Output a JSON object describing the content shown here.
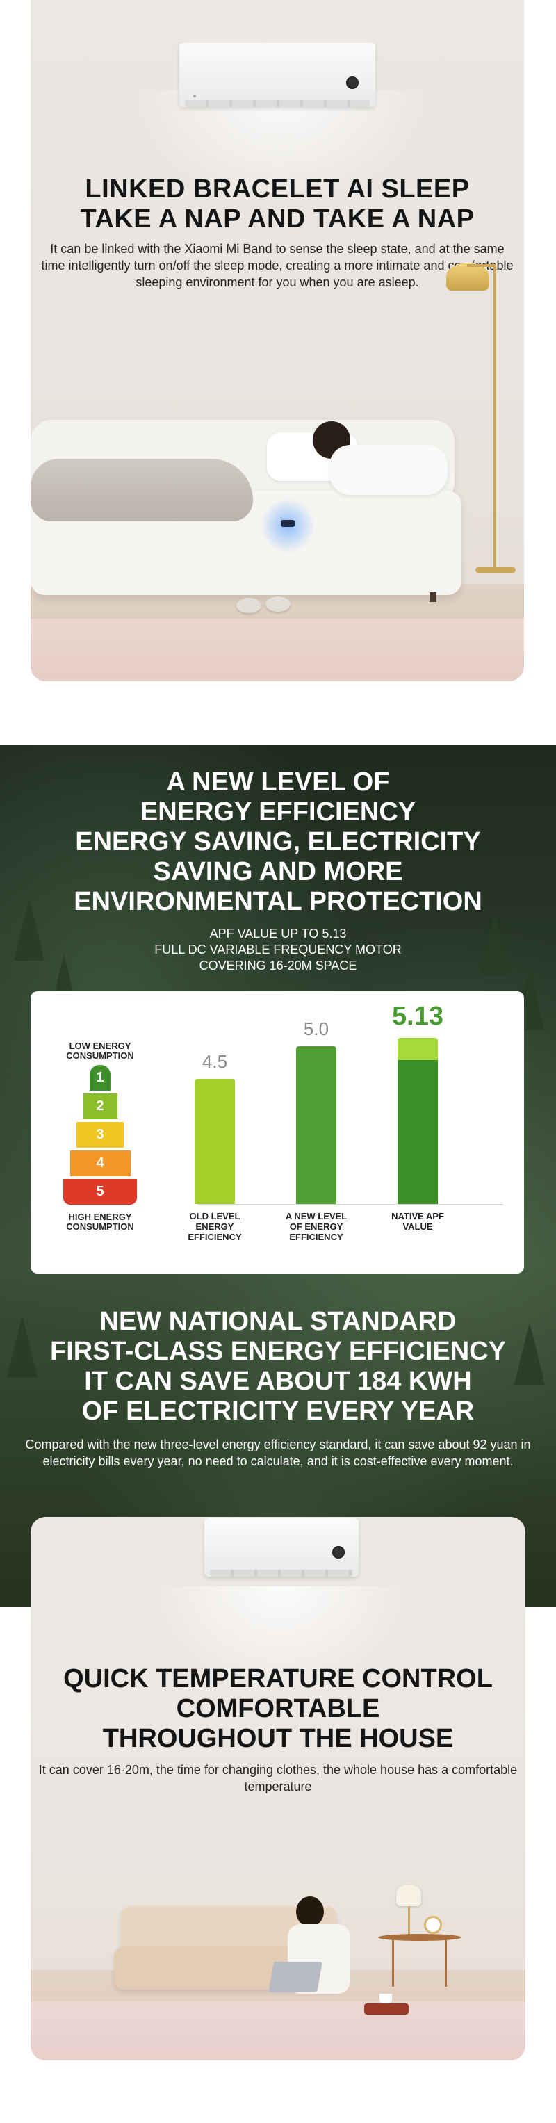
{
  "section_sleep": {
    "title_line1": "LINKED BRACELET AI SLEEP",
    "title_line2": "TAKE A NAP AND TAKE A NAP",
    "description": "It can be linked with the Xiaomi Mi Band to sense the sleep state, and at the same time intelligently turn on/off the sleep mode, creating a more intimate and comfortable sleeping environment for you when you are asleep."
  },
  "section_efficiency": {
    "title_lines": [
      "A NEW LEVEL OF",
      "ENERGY EFFICIENCY",
      "ENERGY SAVING, ELECTRICITY",
      "SAVING AND MORE",
      "ENVIRONMENTAL PROTECTION"
    ],
    "subtitle_lines": [
      "APF VALUE UP TO 5.13",
      "FULL DC VARIABLE FREQUENCY MOTOR",
      "COVERING 16-20M SPACE"
    ],
    "pyramid": {
      "top_label_line1": "LOW ENERGY",
      "top_label_line2": "CONSUMPTION",
      "bottom_label_line1": "HIGH ENERGY",
      "bottom_label_line2": "CONSUMPTION",
      "levels": [
        "1",
        "2",
        "3",
        "4",
        "5"
      ],
      "colors": [
        "#3f8f2c",
        "#8bbf2a",
        "#f2c623",
        "#f2962a",
        "#de3a2a"
      ]
    }
  },
  "chart_data": {
    "type": "bar",
    "categories": [
      "OLD LEVEL ENERGY EFFICIENCY",
      "A NEW LEVEL OF ENERGY EFFICIENCY",
      "NATIVE APF VALUE"
    ],
    "category_lines": [
      [
        "OLD LEVEL",
        "ENERGY",
        "EFFICIENCY"
      ],
      [
        "A NEW LEVEL",
        "OF ENERGY",
        "EFFICIENCY"
      ],
      [
        "NATIVE APF",
        "VALUE"
      ]
    ],
    "values": [
      4.5,
      5.0,
      5.13
    ],
    "value_labels": [
      "4.5",
      "5.0",
      "5.13"
    ],
    "colors": [
      "#a6cf2c",
      "#4f9f35",
      "#3c8e27"
    ],
    "highlight_color": "#a6d93a",
    "ylim": [
      0,
      5.5
    ],
    "grid": false
  },
  "section_standard": {
    "title_lines": [
      "NEW NATIONAL STANDARD",
      "FIRST-CLASS ENERGY EFFICIENCY",
      "IT CAN SAVE ABOUT 184 KWH",
      "OF ELECTRICITY EVERY YEAR"
    ],
    "description": "Compared with the new three-level energy efficiency standard, it can save about 92 yuan in electricity bills every year, no need to calculate, and it is cost-effective every moment."
  },
  "section_temperature": {
    "title_lines": [
      "QUICK TEMPERATURE CONTROL",
      "COMFORTABLE",
      "THROUGHOUT THE HOUSE"
    ],
    "description": "It can cover 16-20m, the time for changing clothes, the whole house has a comfortable temperature"
  }
}
